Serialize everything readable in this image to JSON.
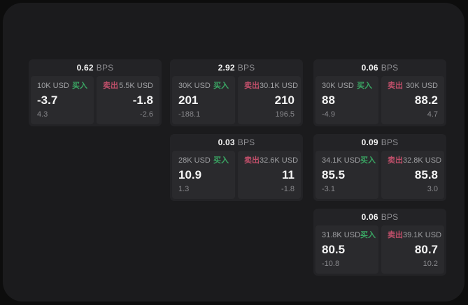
{
  "labels": {
    "buy": "买入",
    "sell": "卖出",
    "bps": "BPS"
  },
  "colors": {
    "page_background": "#0d0d0d",
    "panel_background": "#1b1b1d",
    "card_background": "#232326",
    "tile_background": "#2a2a2d",
    "buy_green": "#3aa563",
    "sell_red": "#c04f6a",
    "primary_text": "#f5f5f5",
    "muted_text": "#8e8e92"
  },
  "cards": [
    {
      "bps": "0.62",
      "buy": {
        "amount": "10K USD",
        "price": "-3.7",
        "delta": "4.3"
      },
      "sell": {
        "amount": "5.5K USD",
        "price": "-1.8",
        "delta": "-2.6"
      }
    },
    {
      "bps": "2.92",
      "buy": {
        "amount": "30K USD",
        "price": "201",
        "delta": "-188.1"
      },
      "sell": {
        "amount": "30.1K USD",
        "price": "210",
        "delta": "196.5"
      }
    },
    {
      "bps": "0.06",
      "buy": {
        "amount": "30K USD",
        "price": "88",
        "delta": "-4.9"
      },
      "sell": {
        "amount": "30K USD",
        "price": "88.2",
        "delta": "4.7"
      }
    },
    {
      "bps": "0.03",
      "buy": {
        "amount": "28K USD",
        "price": "10.9",
        "delta": "1.3"
      },
      "sell": {
        "amount": "32.6K USD",
        "price": "11",
        "delta": "-1.8"
      }
    },
    {
      "bps": "0.09",
      "buy": {
        "amount": "34.1K USD",
        "price": "85.5",
        "delta": "-3.1"
      },
      "sell": {
        "amount": "32.8K USD",
        "price": "85.8",
        "delta": "3.0"
      }
    },
    {
      "bps": "0.06",
      "buy": {
        "amount": "31.8K USD",
        "price": "80.5",
        "delta": "-10.8"
      },
      "sell": {
        "amount": "39.1K USD",
        "price": "80.7",
        "delta": "10.2"
      }
    }
  ]
}
